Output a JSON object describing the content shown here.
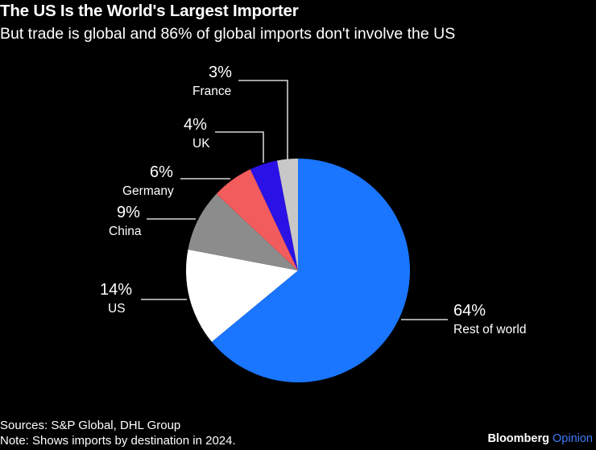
{
  "header": {
    "title": "The US Is the World's Largest Importer",
    "subtitle": "But trade is global and 86% of global imports don't involve the US"
  },
  "chart_data": {
    "type": "pie",
    "title": "The US Is the World's Largest Importer",
    "subtitle": "But trade is global and 86% of global imports don't involve the US",
    "slices": [
      {
        "label": "Rest of world",
        "value": 64,
        "pct_label": "64%",
        "color": "#1a75ff"
      },
      {
        "label": "US",
        "value": 14,
        "pct_label": "14%",
        "color": "#ffffff"
      },
      {
        "label": "China",
        "value": 9,
        "pct_label": "9%",
        "color": "#8c8c8c"
      },
      {
        "label": "Germany",
        "value": 6,
        "pct_label": "6%",
        "color": "#f25c5c"
      },
      {
        "label": "UK",
        "value": 4,
        "pct_label": "4%",
        "color": "#2a12e6"
      },
      {
        "label": "France",
        "value": 3,
        "pct_label": "3%",
        "color": "#c8c8c8"
      }
    ],
    "start": "12 o'clock",
    "direction": "clockwise"
  },
  "footer": {
    "sources": "Sources: S&P Global, DHL Group",
    "note": "Note: Shows imports by destination in 2024."
  },
  "brand": {
    "name": "Bloomberg",
    "suffix": "Opinion"
  }
}
